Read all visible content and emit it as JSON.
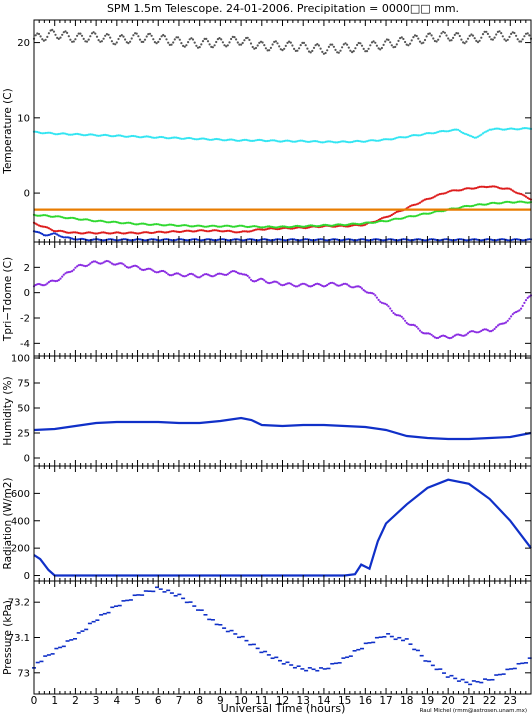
{
  "title": "SPM 1.5m Telescope. 24-01-2006. Precipitation = 0000□□ mm.",
  "credit": "Raul Michel (rmm@astrosen.unam.mx)",
  "xlabel": "Universal Time (hours)",
  "chart_data": [
    {
      "panel": "temperature",
      "type": "scatter",
      "ylabel": "Temperature (C)",
      "ylim": [
        -6.5,
        23
      ],
      "yticks": [
        0,
        10,
        20
      ],
      "xlim": [
        0,
        24
      ],
      "series": [
        {
          "color": "#555555",
          "x": [
            0,
            1,
            2,
            3,
            4,
            5,
            6,
            7,
            8,
            9,
            10,
            11,
            12,
            13,
            14,
            15,
            16,
            17,
            18,
            19,
            20,
            21,
            22,
            23,
            24
          ],
          "y": [
            20.5,
            21.2,
            20.6,
            20.8,
            20.3,
            20.7,
            20.5,
            20.1,
            19.9,
            20.0,
            20.3,
            19.5,
            19.6,
            19.4,
            19.1,
            19.3,
            19.4,
            19.8,
            20.2,
            20.6,
            20.9,
            20.4,
            21.0,
            20.8,
            20.6
          ]
        },
        {
          "color": "#33e5f2",
          "x": [
            0,
            1,
            2,
            3,
            4,
            5,
            6,
            7,
            8,
            9,
            10,
            11,
            12,
            13,
            14,
            15,
            16,
            17,
            18,
            19,
            20,
            20.5,
            21,
            21.3,
            21.6,
            22,
            23,
            24
          ],
          "y": [
            8.1,
            7.9,
            7.8,
            7.7,
            7.6,
            7.5,
            7.4,
            7.3,
            7.2,
            7.1,
            7.0,
            7.0,
            6.9,
            6.9,
            6.8,
            6.8,
            6.9,
            7.1,
            7.5,
            7.9,
            8.3,
            8.4,
            7.6,
            7.4,
            7.7,
            8.5,
            8.5,
            8.6
          ]
        },
        {
          "color": "#dd1c1c",
          "x": [
            0,
            1,
            2,
            3,
            4,
            5,
            6,
            7,
            8,
            9,
            10,
            11,
            12,
            13,
            14,
            15,
            16,
            17,
            18,
            19,
            20,
            21,
            22,
            23,
            24
          ],
          "y": [
            -4.0,
            -5.0,
            -5.3,
            -5.3,
            -5.3,
            -5.3,
            -5.2,
            -5.1,
            -5.0,
            -5.0,
            -5.2,
            -4.8,
            -4.7,
            -4.6,
            -4.4,
            -4.4,
            -4.2,
            -3.2,
            -2.0,
            -0.8,
            0.2,
            0.6,
            0.9,
            0.5,
            -0.8
          ]
        },
        {
          "color": "#2fd82f",
          "x": [
            0,
            1,
            2,
            3,
            4,
            5,
            6,
            7,
            8,
            9,
            10,
            11,
            12,
            13,
            14,
            15,
            16,
            17,
            18,
            19,
            20,
            21,
            22,
            23,
            24
          ],
          "y": [
            -2.9,
            -3.1,
            -3.4,
            -3.7,
            -3.9,
            -4.1,
            -4.2,
            -4.3,
            -4.4,
            -4.4,
            -4.4,
            -4.5,
            -4.5,
            -4.4,
            -4.3,
            -4.2,
            -4.0,
            -3.7,
            -3.2,
            -2.7,
            -2.2,
            -1.7,
            -1.4,
            -1.2,
            -1.2
          ]
        },
        {
          "color": "#e87c00",
          "x": [
            0,
            24
          ],
          "y": [
            -2.2,
            -2.2
          ]
        },
        {
          "color": "#1030c8",
          "x": [
            0,
            0.5,
            1,
            1.5,
            2,
            2.5,
            3,
            4,
            5,
            24
          ],
          "y": [
            -5.0,
            -5.6,
            -5.4,
            -5.9,
            -6.1,
            -6.2,
            -6.2,
            -6.2,
            -6.2,
            -6.2
          ]
        }
      ]
    },
    {
      "panel": "tpri-tdome",
      "type": "scatter",
      "ylabel": "Tpri−Tdome (C)",
      "ylim": [
        -5,
        4
      ],
      "yticks": [
        -4,
        -2,
        0,
        2
      ],
      "xlim": [
        0,
        24
      ],
      "series": [
        {
          "color": "#8a2be2",
          "x": [
            0,
            0.5,
            1,
            1.5,
            2,
            2.5,
            3,
            3.5,
            4,
            4.5,
            5,
            5.5,
            6,
            6.5,
            7,
            7.5,
            8,
            8.5,
            9,
            9.5,
            10,
            10.5,
            11,
            11.5,
            12,
            12.5,
            13,
            13.5,
            14,
            14.5,
            15,
            15.5,
            16,
            16.5,
            17,
            17.5,
            18,
            18.5,
            19,
            19.5,
            20,
            20.5,
            21,
            21.5,
            22,
            22.5,
            23,
            23.5,
            24
          ],
          "y": [
            0.5,
            0.7,
            0.9,
            1.4,
            2.0,
            2.2,
            2.4,
            2.4,
            2.3,
            2.1,
            2.0,
            1.8,
            1.7,
            1.5,
            1.4,
            1.4,
            1.3,
            1.4,
            1.4,
            1.6,
            1.6,
            1.0,
            1.0,
            0.8,
            0.7,
            0.6,
            0.6,
            0.6,
            0.6,
            0.7,
            0.6,
            0.5,
            0.2,
            -0.3,
            -1.0,
            -1.7,
            -2.3,
            -2.8,
            -3.3,
            -3.5,
            -3.5,
            -3.4,
            -3.2,
            -3.0,
            -3.0,
            -2.6,
            -2.0,
            -1.2,
            -0.2
          ]
        }
      ]
    },
    {
      "panel": "humidity",
      "type": "line",
      "ylabel": "Humidity (%)",
      "ylim": [
        -8,
        102
      ],
      "yticks": [
        0,
        25,
        50,
        75,
        100
      ],
      "xlim": [
        0,
        24
      ],
      "series": [
        {
          "color": "#1030c8",
          "x": [
            0,
            1,
            2,
            3,
            4,
            5,
            6,
            7,
            8,
            9,
            10,
            10.5,
            11,
            12,
            13,
            14,
            15,
            16,
            17,
            18,
            19,
            20,
            21,
            22,
            23,
            24
          ],
          "y": [
            28,
            29,
            32,
            35,
            36,
            36,
            36,
            35,
            35,
            37,
            40,
            38,
            33,
            32,
            33,
            33,
            32,
            31,
            28,
            22,
            20,
            19,
            19,
            20,
            21,
            25
          ]
        }
      ]
    },
    {
      "panel": "radiation",
      "type": "line",
      "ylabel": "Radiation (W/m2)",
      "ylim": [
        -40,
        800
      ],
      "yticks": [
        0,
        200,
        400,
        600
      ],
      "xlim": [
        0,
        24
      ],
      "series": [
        {
          "color": "#1030c8",
          "x": [
            0,
            0.3,
            0.7,
            1,
            2,
            4,
            6,
            8,
            10,
            12,
            14,
            15,
            15.5,
            15.8,
            16.2,
            16.6,
            17,
            18,
            19,
            20,
            21,
            22,
            23,
            24
          ],
          "y": [
            150,
            120,
            40,
            0,
            0,
            0,
            0,
            0,
            0,
            0,
            0,
            0,
            10,
            80,
            50,
            250,
            380,
            520,
            640,
            700,
            670,
            560,
            400,
            200
          ]
        }
      ]
    },
    {
      "panel": "pressure",
      "type": "scatter",
      "ylabel": "Pressure (kPa)",
      "ylim": [
        72.94,
        73.26
      ],
      "yticks": [
        73,
        73.1,
        73.2
      ],
      "xlim": [
        0,
        24
      ],
      "series": [
        {
          "color": "#1030c8",
          "x": [
            0,
            1,
            2,
            3,
            4,
            5,
            6,
            7,
            8,
            9,
            10,
            11,
            12,
            13,
            14,
            15,
            16,
            17,
            18,
            19,
            20,
            21,
            22,
            23,
            24
          ],
          "y": [
            73.02,
            73.06,
            73.1,
            73.15,
            73.19,
            73.22,
            73.24,
            73.22,
            73.18,
            73.13,
            73.1,
            73.06,
            73.03,
            73.01,
            73.01,
            73.04,
            73.08,
            73.11,
            73.09,
            73.03,
            72.99,
            72.97,
            72.98,
            73.01,
            73.04
          ]
        }
      ]
    }
  ]
}
